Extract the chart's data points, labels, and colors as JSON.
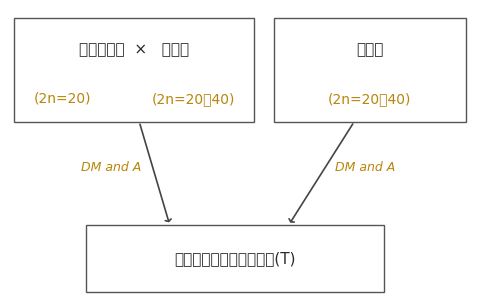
{
  "box1_title": "玉米自交系  ×   大刍草",
  "box1_sub_left": "(2n=20)",
  "box1_sub_right": "(2n=20、40)",
  "box2_title": "大刍草",
  "box2_sub": "(2n=20、40)",
  "box3_text": "筛选优良抗涝性的大刍草(T)",
  "label_left": "DM and A",
  "label_right": "DM and A",
  "text_color_black": "#2b2b2b",
  "text_color_gold": "#B8860B",
  "bg_color": "#ffffff",
  "box_edge_color": "#555555",
  "arrow_color": "#444444"
}
